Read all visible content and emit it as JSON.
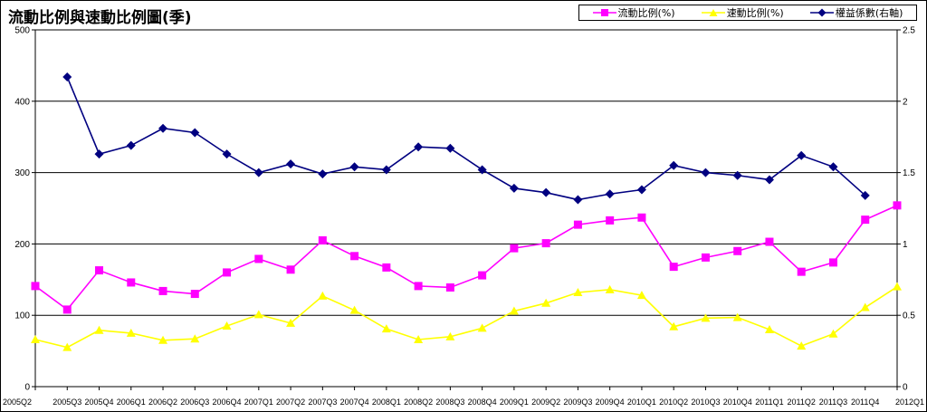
{
  "chart_data": {
    "type": "line",
    "title": "流動比例與速動比例圖(季)",
    "categories": [
      "2005Q2",
      "2005Q3",
      "2005Q4",
      "2006Q1",
      "2006Q2",
      "2006Q3",
      "2006Q4",
      "2007Q1",
      "2007Q2",
      "2007Q3",
      "2007Q4",
      "2008Q1",
      "2008Q2",
      "2008Q3",
      "2008Q4",
      "2009Q1",
      "2009Q2",
      "2009Q3",
      "2009Q4",
      "2010Q1",
      "2010Q2",
      "2010Q3",
      "2010Q4",
      "2011Q1",
      "2011Q2",
      "2011Q3",
      "2011Q4",
      "2012Q1"
    ],
    "y_left": {
      "min": 0,
      "max": 500,
      "ticks": [
        "0",
        "100",
        "200",
        "300",
        "400",
        "500"
      ]
    },
    "y_right": {
      "min": 0,
      "max": 2.5,
      "ticks": [
        "0",
        "0.5",
        "1",
        "1.5",
        "2",
        "2.5"
      ]
    },
    "grid": "horizontal",
    "legend_position": "top-right",
    "series": [
      {
        "name": "流動比例(%)",
        "axis": "left",
        "color": "#FF00FF",
        "marker": "square",
        "values": [
          141,
          108,
          163,
          146,
          134,
          130,
          160,
          179,
          164,
          205,
          183,
          167,
          141,
          139,
          156,
          194,
          201,
          227,
          233,
          237,
          168,
          181,
          190,
          203,
          161,
          174,
          234,
          254
        ]
      },
      {
        "name": "速動比例(%)",
        "axis": "left",
        "color": "#FFFF00",
        "marker": "triangle",
        "values": [
          66,
          55,
          79,
          75,
          65,
          67,
          85,
          101,
          89,
          127,
          107,
          81,
          66,
          70,
          82,
          106,
          117,
          132,
          136,
          128,
          84,
          96,
          97,
          80,
          57,
          74,
          111,
          140
        ]
      },
      {
        "name": "權益係數(右軸)",
        "axis": "right",
        "color": "#000080",
        "marker": "diamond",
        "values": [
          null,
          2.17,
          1.63,
          1.69,
          1.81,
          1.78,
          1.63,
          1.5,
          1.56,
          1.49,
          1.54,
          1.52,
          1.68,
          1.67,
          1.52,
          1.39,
          1.36,
          1.31,
          1.35,
          1.38,
          1.55,
          1.5,
          1.48,
          1.45,
          1.62,
          1.54,
          1.34,
          null
        ]
      }
    ]
  }
}
